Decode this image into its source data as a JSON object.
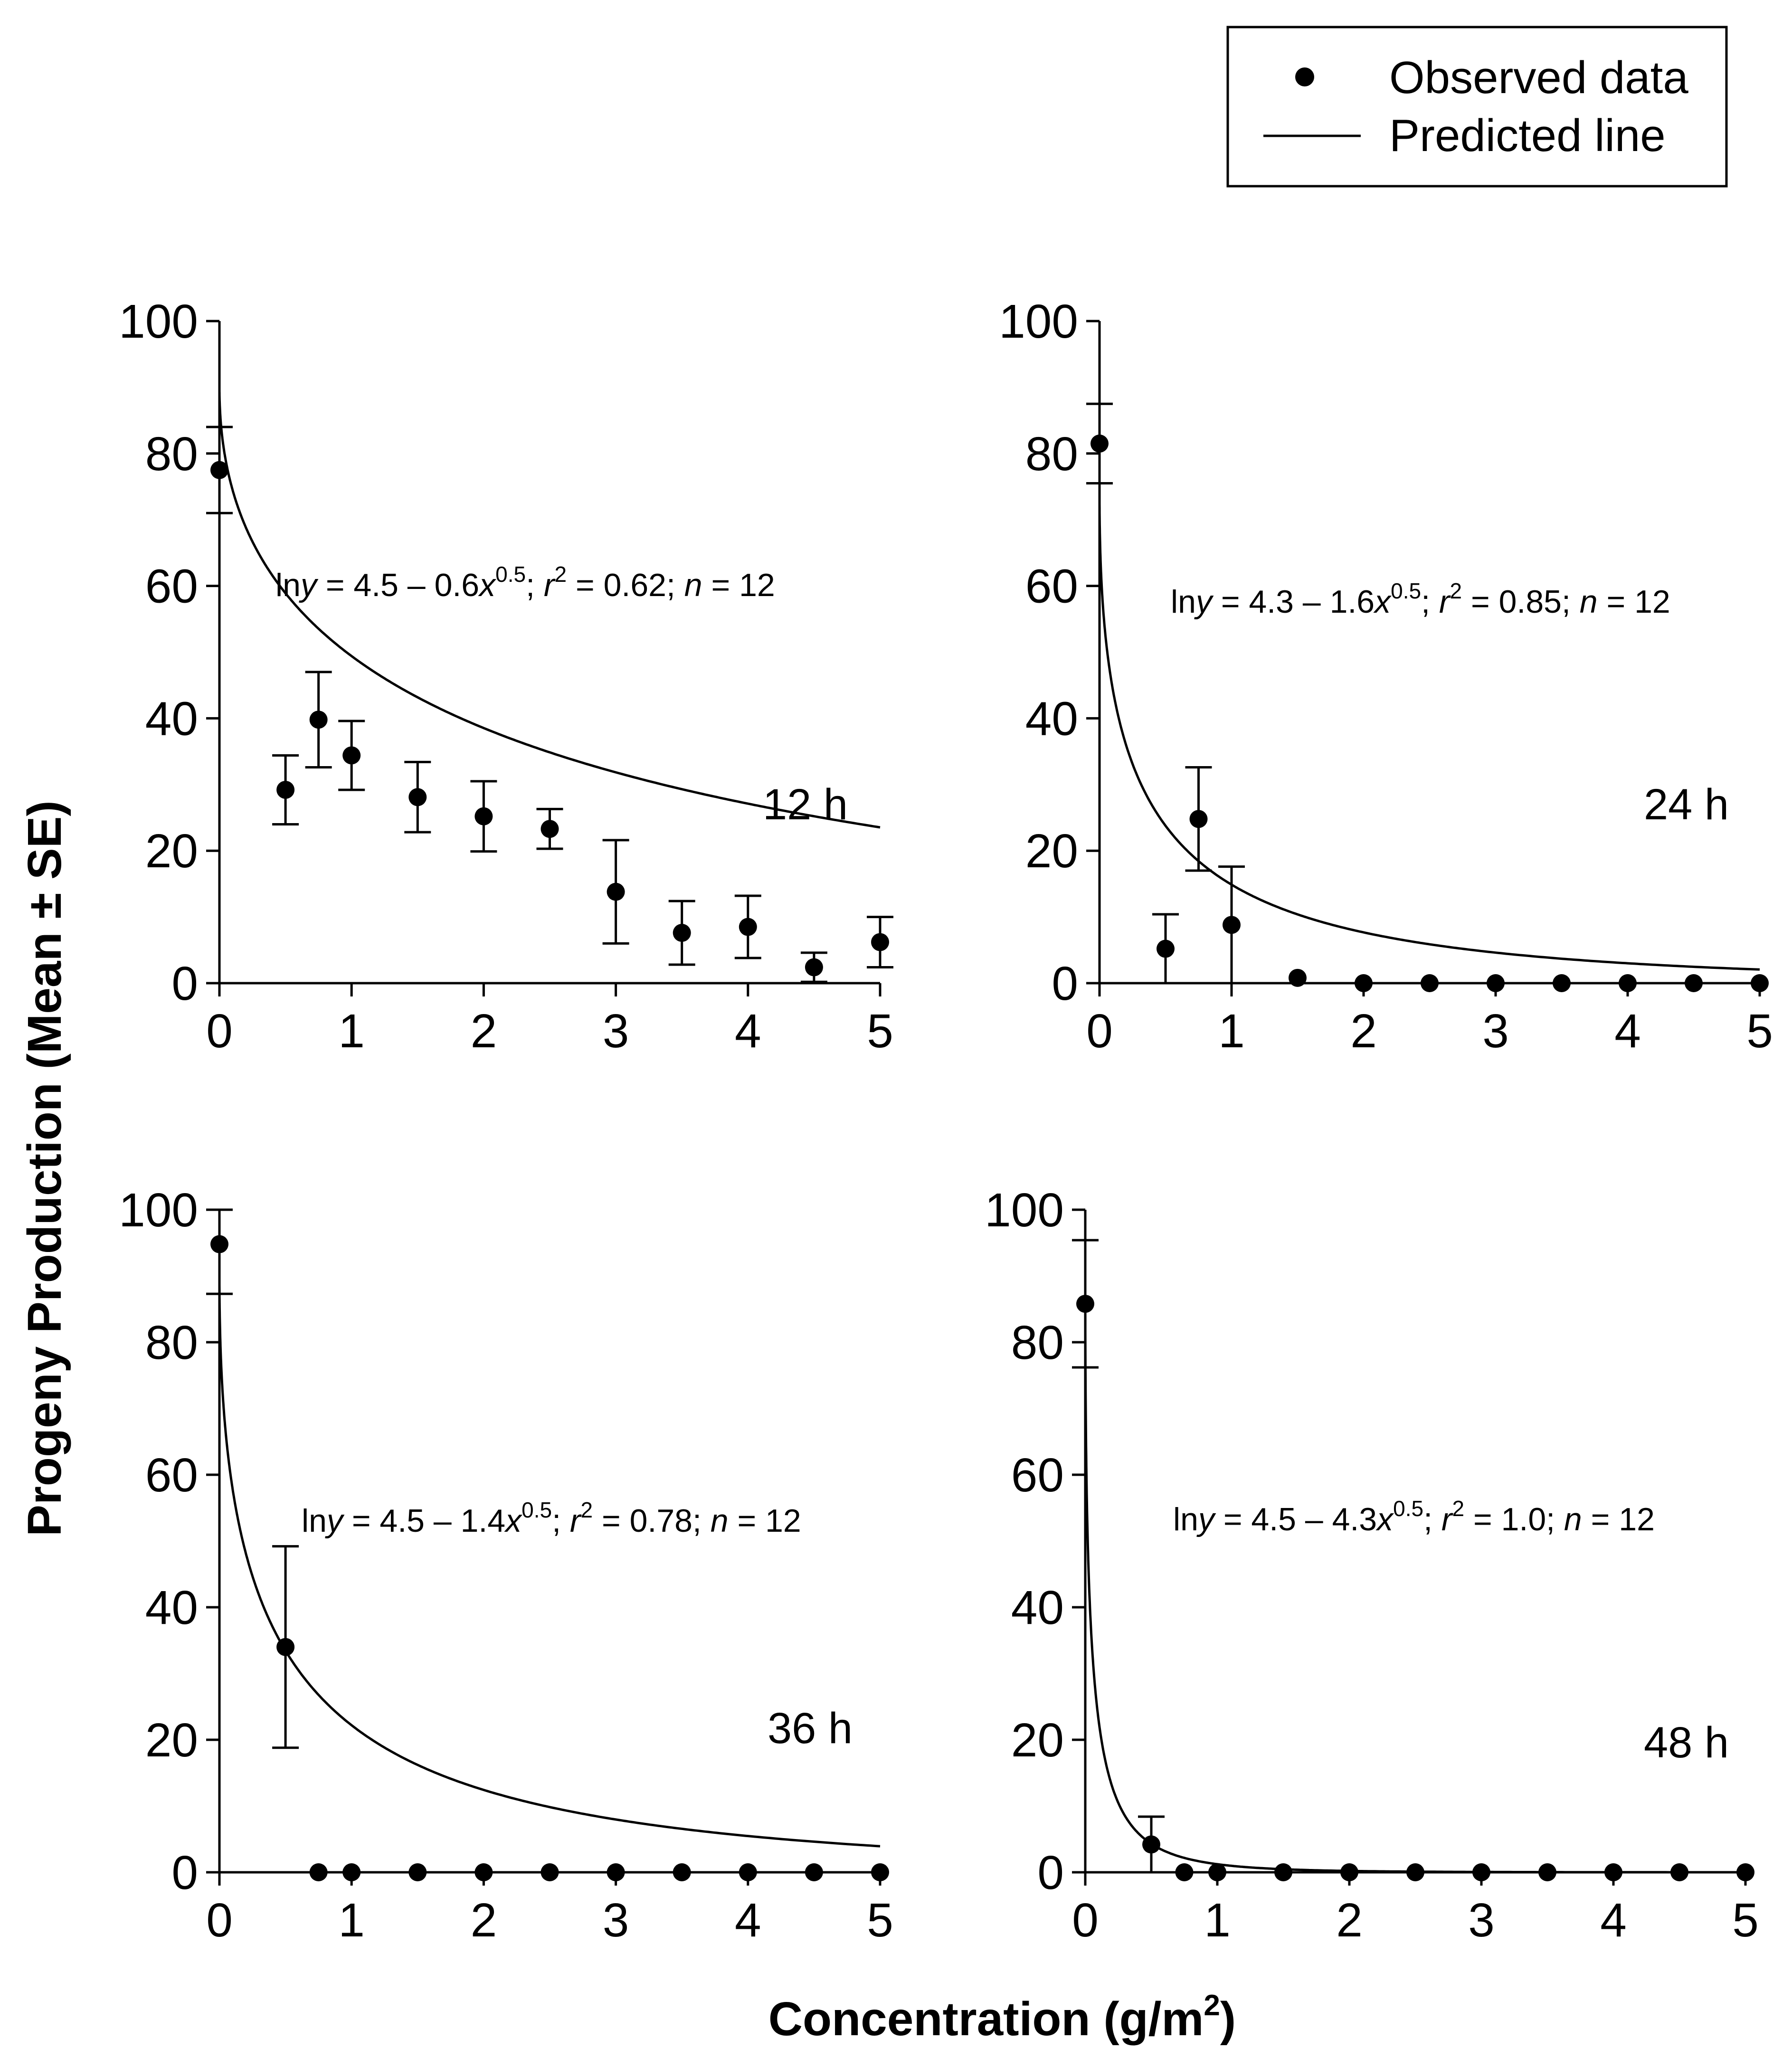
{
  "figure": {
    "ylabel": "Progeny Production (Mean ± SE)",
    "xlabel_main": "Concentration (g/m",
    "xlabel_sup": "2",
    "xlabel_end": ")"
  },
  "legend": {
    "observed_label": "Observed data",
    "predicted_label": "Predicted line"
  },
  "chart_data": [
    {
      "type": "scatter",
      "panel_label": "12 h",
      "equation": {
        "ln": "ln",
        "y": "y",
        "eq": " = 4.5 – 0.6",
        "x": "x",
        "exp": "0.5",
        "r_sep": "; ",
        "r": "r",
        "r_exp": "2",
        "r_val": " = 0.62; ",
        "n": "n",
        "n_val": " = 12"
      },
      "fit": {
        "a": 4.5,
        "b": 0.6
      },
      "xlim": [
        0,
        5
      ],
      "ylim": [
        0,
        100
      ],
      "xticks": [
        0,
        1,
        2,
        3,
        4,
        5
      ],
      "yticks": [
        0,
        20,
        40,
        60,
        80,
        100
      ],
      "points": [
        {
          "x": 0,
          "y": 77.5,
          "se": 6.5
        },
        {
          "x": 0.5,
          "y": 29.2,
          "se": 5.2
        },
        {
          "x": 0.75,
          "y": 39.8,
          "se": 7.2
        },
        {
          "x": 1,
          "y": 34.4,
          "se": 5.2
        },
        {
          "x": 1.5,
          "y": 28.1,
          "se": 5.3
        },
        {
          "x": 2,
          "y": 25.2,
          "se": 5.3
        },
        {
          "x": 2.5,
          "y": 23.3,
          "se": 3.0
        },
        {
          "x": 3,
          "y": 13.8,
          "se": 7.8
        },
        {
          "x": 3.5,
          "y": 7.6,
          "se": 4.8
        },
        {
          "x": 4,
          "y": 8.5,
          "se": 4.7
        },
        {
          "x": 4.5,
          "y": 2.4,
          "se": 2.2
        },
        {
          "x": 5,
          "y": 6.2,
          "se": 3.8
        }
      ]
    },
    {
      "type": "scatter",
      "panel_label": "24 h",
      "equation": {
        "ln": "ln",
        "y": "y",
        "eq": " = 4.3 – 1.6",
        "x": "x",
        "exp": "0.5",
        "r_sep": "; ",
        "r": "r",
        "r_exp": "2",
        "r_val": " = 0.85; ",
        "n": "n",
        "n_val": " = 12"
      },
      "fit": {
        "a": 4.3,
        "b": 1.6
      },
      "xlim": [
        0,
        5
      ],
      "ylim": [
        0,
        100
      ],
      "xticks": [
        0,
        1,
        2,
        3,
        4,
        5
      ],
      "yticks": [
        0,
        20,
        40,
        60,
        80,
        100
      ],
      "points": [
        {
          "x": 0,
          "y": 81.5,
          "se": 6.0
        },
        {
          "x": 0.5,
          "y": 5.2,
          "se": 5.2
        },
        {
          "x": 0.75,
          "y": 24.8,
          "se": 7.8
        },
        {
          "x": 1,
          "y": 8.8,
          "se": 8.8
        },
        {
          "x": 1.5,
          "y": 0.8,
          "se": 0
        },
        {
          "x": 2,
          "y": 0,
          "se": 0
        },
        {
          "x": 2.5,
          "y": 0,
          "se": 0
        },
        {
          "x": 3,
          "y": 0,
          "se": 0
        },
        {
          "x": 3.5,
          "y": 0,
          "se": 0
        },
        {
          "x": 4,
          "y": 0,
          "se": 0
        },
        {
          "x": 4.5,
          "y": 0,
          "se": 0
        },
        {
          "x": 5,
          "y": 0,
          "se": 0
        }
      ]
    },
    {
      "type": "scatter",
      "panel_label": "36 h",
      "equation": {
        "ln": "ln",
        "y": "y",
        "eq": " = 4.5 – 1.4",
        "x": "x",
        "exp": "0.5",
        "r_sep": "; ",
        "r": "r",
        "r_exp": "2",
        "r_val": " = 0.78; ",
        "n": "n",
        "n_val": " = 12"
      },
      "fit": {
        "a": 4.5,
        "b": 1.4
      },
      "xlim": [
        0,
        5
      ],
      "ylim": [
        0,
        100
      ],
      "xticks": [
        0,
        1,
        2,
        3,
        4,
        5
      ],
      "yticks": [
        0,
        20,
        40,
        60,
        80,
        100
      ],
      "points": [
        {
          "x": 0,
          "y": 94.8,
          "se": 7.5
        },
        {
          "x": 0.5,
          "y": 34.0,
          "se": 15.2
        },
        {
          "x": 0.75,
          "y": 0,
          "se": 0
        },
        {
          "x": 1,
          "y": 0,
          "se": 0
        },
        {
          "x": 1.5,
          "y": 0,
          "se": 0
        },
        {
          "x": 2,
          "y": 0,
          "se": 0
        },
        {
          "x": 2.5,
          "y": 0,
          "se": 0
        },
        {
          "x": 3,
          "y": 0,
          "se": 0
        },
        {
          "x": 3.5,
          "y": 0,
          "se": 0
        },
        {
          "x": 4,
          "y": 0,
          "se": 0
        },
        {
          "x": 4.5,
          "y": 0,
          "se": 0
        },
        {
          "x": 5,
          "y": 0,
          "se": 0
        }
      ]
    },
    {
      "type": "scatter",
      "panel_label": "48 h",
      "equation": {
        "ln": "ln",
        "y": "y",
        "eq": " = 4.5 – 4.3",
        "x": "x",
        "exp": "0.5",
        "r_sep": "; ",
        "r": "r",
        "r_exp": "2",
        "r_val": " = 1.0; ",
        "n": "n",
        "n_val": " = 12"
      },
      "fit": {
        "a": 4.5,
        "b": 4.3
      },
      "xlim": [
        0,
        5
      ],
      "ylim": [
        0,
        100
      ],
      "xticks": [
        0,
        1,
        2,
        3,
        4,
        5
      ],
      "yticks": [
        0,
        20,
        40,
        60,
        80,
        100
      ],
      "points": [
        {
          "x": 0,
          "y": 85.8,
          "se": 9.6
        },
        {
          "x": 0.5,
          "y": 4.2,
          "se": 4.2
        },
        {
          "x": 0.75,
          "y": 0,
          "se": 0
        },
        {
          "x": 1,
          "y": 0,
          "se": 0
        },
        {
          "x": 1.5,
          "y": 0,
          "se": 0
        },
        {
          "x": 2,
          "y": 0,
          "se": 0
        },
        {
          "x": 2.5,
          "y": 0,
          "se": 0
        },
        {
          "x": 3,
          "y": 0,
          "se": 0
        },
        {
          "x": 3.5,
          "y": 0,
          "se": 0
        },
        {
          "x": 4,
          "y": 0,
          "se": 0
        },
        {
          "x": 4.5,
          "y": 0,
          "se": 0
        },
        {
          "x": 5,
          "y": 0,
          "se": 0
        }
      ]
    }
  ]
}
